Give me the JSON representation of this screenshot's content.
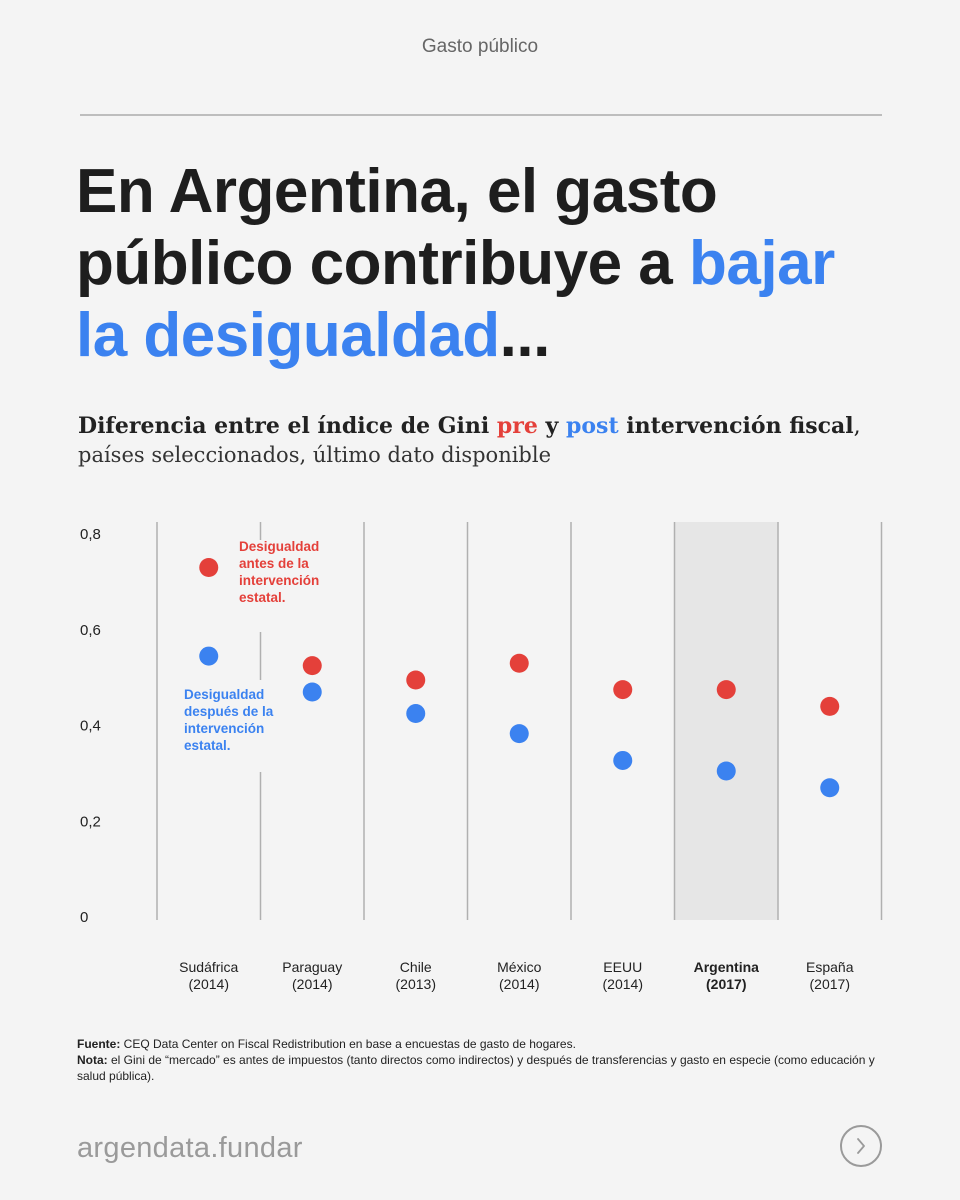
{
  "header": {
    "topic": "Gasto público"
  },
  "headline": {
    "part1": "En Argentina, el gasto público contribuye a ",
    "highlight": "bajar la desigualdad",
    "part2": "..."
  },
  "subtitle": {
    "lead": "Diferencia entre el índice de Gini ",
    "pre": "pre",
    "mid": " y ",
    "post": "post",
    "tail": " intervención fiscal",
    "comma": ",",
    "line2": "países seleccionados, último dato disponible"
  },
  "colors": {
    "pre": "#e4403a",
    "post": "#3b82f0",
    "highlight_bg": "#e6e6e6"
  },
  "chart_data": {
    "type": "scatter",
    "categories": [
      {
        "name": "Sudáfrica",
        "year": "(2014)",
        "pre": 0.73,
        "post": 0.545,
        "highlight": false
      },
      {
        "name": "Paraguay",
        "year": "(2014)",
        "pre": 0.525,
        "post": 0.47,
        "highlight": false
      },
      {
        "name": "Chile",
        "year": "(2013)",
        "pre": 0.495,
        "post": 0.425,
        "highlight": false
      },
      {
        "name": "México",
        "year": "(2014)",
        "pre": 0.53,
        "post": 0.383,
        "highlight": false
      },
      {
        "name": "EEUU",
        "year": "(2014)",
        "pre": 0.475,
        "post": 0.327,
        "highlight": false
      },
      {
        "name": "Argentina",
        "year": "(2017)",
        "pre": 0.475,
        "post": 0.305,
        "highlight": true
      },
      {
        "name": "España",
        "year": "(2017)",
        "pre": 0.44,
        "post": 0.27,
        "highlight": false
      }
    ],
    "series": [
      {
        "name": "pre",
        "label": [
          "Desigualdad",
          "antes de la",
          "intervención",
          "estatal."
        ]
      },
      {
        "name": "post",
        "label": [
          "Desigualdad",
          "después de la",
          "intervención",
          "estatal."
        ]
      }
    ],
    "y_ticks": [
      "0",
      "0,2",
      "0,4",
      "0,6",
      "0,8"
    ],
    "y_tick_values": [
      0,
      0.2,
      0.4,
      0.6,
      0.8
    ],
    "ylim": [
      0,
      0.8
    ]
  },
  "footnotes": {
    "source_label": "Fuente:",
    "source_text": " CEQ Data Center on Fiscal Redistribution en base a encuestas de gasto de hogares.",
    "note_label": "Nota:",
    "note_text": " el Gini de “mercado” es antes de impuestos (tanto directos como indirectos) y después de transferencias y gasto en especie (como educación y salud pública)."
  },
  "footer": {
    "brand": "argendata.fundar",
    "next_icon": "chevron-right-icon"
  }
}
